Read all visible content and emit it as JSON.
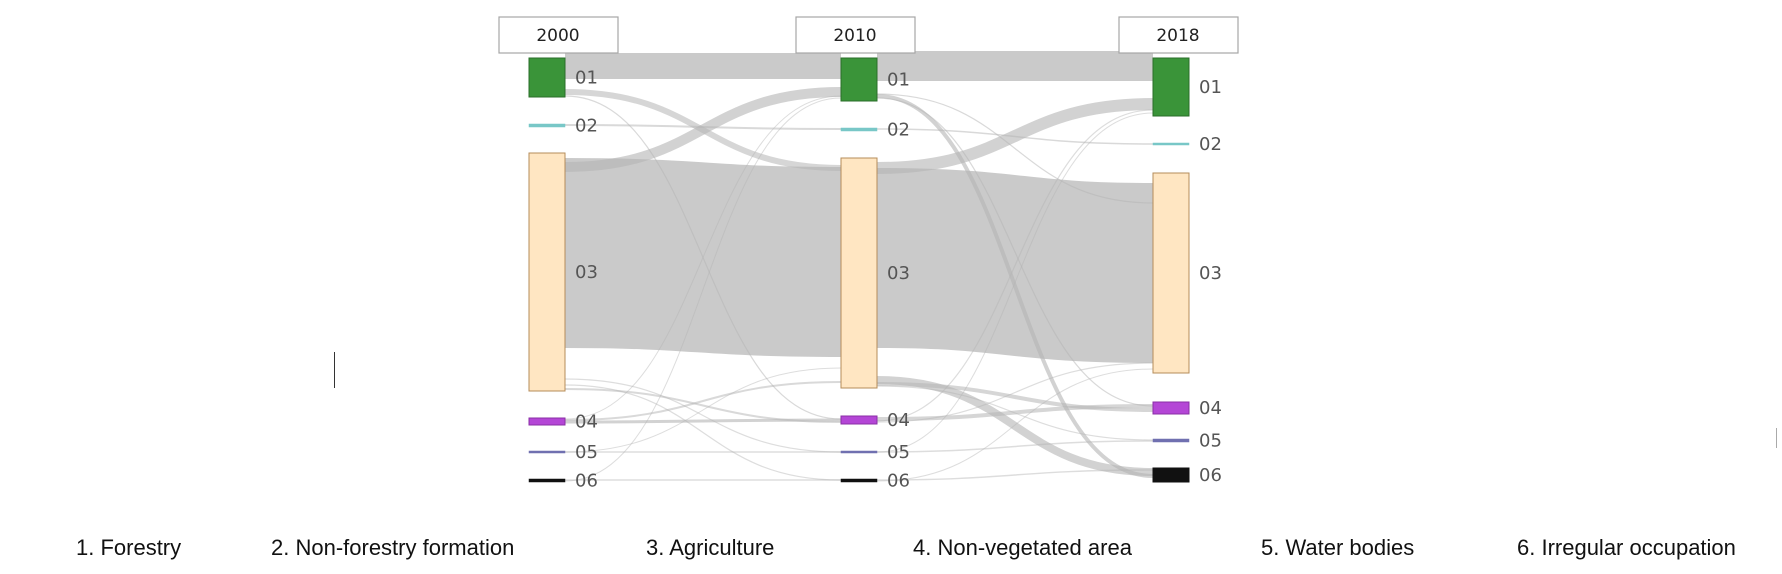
{
  "diagram": {
    "type": "sankey",
    "years": [
      "2000",
      "2010",
      "2018"
    ],
    "nodes": [
      {
        "code": "01",
        "color": "#3a9439",
        "border": "#2a6e29"
      },
      {
        "code": "02",
        "color": "#79c7c7",
        "border": "#79c7c7"
      },
      {
        "code": "03",
        "color": "#ffe6c2",
        "border": "#b58c5a"
      },
      {
        "code": "04",
        "color": "#b446d6",
        "border": "#8a2fa6"
      },
      {
        "code": "05",
        "color": "#7070b0",
        "border": "#7070b0"
      },
      {
        "code": "06",
        "color": "#111111",
        "border": "#111111"
      }
    ],
    "flow_color": "#b4b4b4"
  },
  "legend": [
    "1. Forestry",
    "2. Non-forestry formation",
    "3. Agriculture",
    "4. Non-vegetated area",
    "5. Water bodies",
    "6. Irregular occupation"
  ]
}
